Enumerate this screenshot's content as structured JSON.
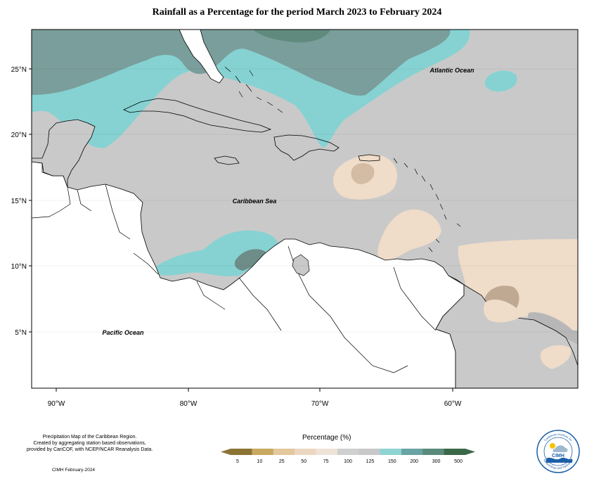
{
  "title": "Rainfall as a Percentage for the period March 2023 to February 2024",
  "map": {
    "lat_ticks": [
      "25°N",
      "20°N",
      "15°N",
      "10°N",
      "5°N"
    ],
    "lon_ticks": [
      "90°W",
      "80°W",
      "70°W",
      "60°W"
    ],
    "labels": {
      "atlantic": "Atlantic Ocean",
      "caribbean": "Caribbean Sea",
      "pacific": "Pacific Ocean"
    }
  },
  "notes": {
    "line1": "Precipitation Map of the Caribbean Region.",
    "line2": "Created by aggregating station based observations,",
    "line3": "provided by CariCOF, with NCEP/NCAR Reanalysis Data.",
    "credit": "CIMH February-2024"
  },
  "legend": {
    "title": "Percentage (%)",
    "ticks": [
      "5",
      "10",
      "25",
      "50",
      "75",
      "100",
      "125",
      "150",
      "200",
      "300",
      "500"
    ],
    "colors": [
      "#8c7434",
      "#c9a85f",
      "#e2c89d",
      "#ecd7c2",
      "#efe3d8",
      "#cfcfcf",
      "#c8c8c8",
      "#8fd3d3",
      "#6aa3a3",
      "#5a8a7a",
      "#3b6848"
    ]
  },
  "logo": {
    "text": "CIMH",
    "ring_top": "Caribbean Institute for",
    "ring_bottom": "Meteorology and Hydrology"
  }
}
